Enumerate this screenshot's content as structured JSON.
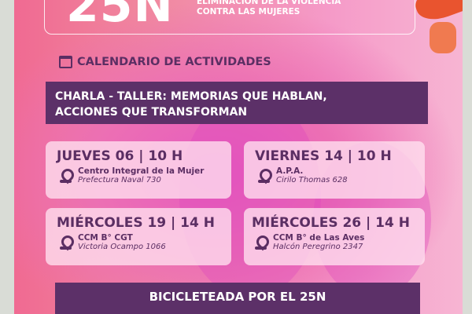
{
  "header": {
    "big_title": "25N",
    "subtitle_line1": "ELIMINACIÓN DE LA VIOLENCIA",
    "subtitle_line2": "CONTRA LAS MUJERES"
  },
  "calendar_heading": "CALENDARIO DE ACTIVIDADES",
  "section1": {
    "line1": "CHARLA - TALLER: MEMORIAS QUE HABLAN,",
    "line2": "ACCIONES QUE TRANSFORMAN"
  },
  "events": [
    {
      "date": "JUEVES 06  |  10 H",
      "place": "Centro Integral de la Mujer",
      "address": "Prefectura Naval 730"
    },
    {
      "date": "VIERNES 14  |  10 H",
      "place": "A.P.A.",
      "address": "Cirilo Thomas 628"
    },
    {
      "date": "MIÉRCOLES 19  |  14 H",
      "place": "CCM B° CGT",
      "address": "Victoria Ocampo 1066"
    },
    {
      "date": "MIÉRCOLES 26  |  14 H",
      "place": "CCM B° de Las Aves",
      "address": "Halcón Peregrino 2347"
    }
  ],
  "section2": "BICICLETEADA POR EL 25N",
  "colors": {
    "primary": "#5c3068",
    "background": "#ec6fb4"
  }
}
